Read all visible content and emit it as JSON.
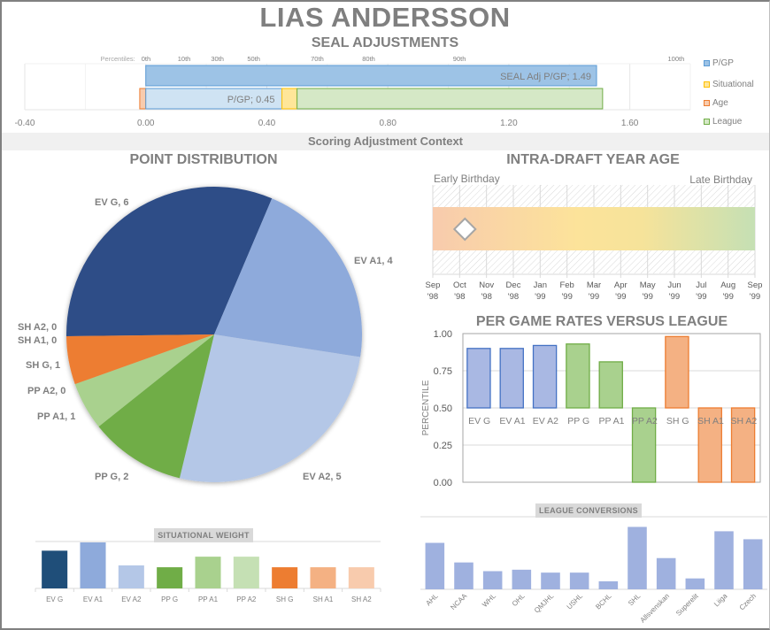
{
  "header": {
    "player_name": "LIAS ANDERSSON",
    "subtitle": "SEAL ADJUSTMENTS"
  },
  "section_band": "Scoring Adjustment Context",
  "colors": {
    "pgp": "#9dc3e6",
    "pgp_border": "#5b9bd5",
    "pgp_light": "#cfe3f3",
    "situational": "#ffe699",
    "situational_border": "#ffc000",
    "age": "#f8cbad",
    "age_border": "#ed7d31",
    "league": "#d5e8c6",
    "league_border": "#70ad47",
    "text": "#7f7f7f"
  },
  "chart_data": [
    {
      "id": "seal_adjustments",
      "type": "bar",
      "orientation": "horizontal-stacked",
      "title": "SEAL ADJUSTMENTS",
      "xlim": [
        -0.4,
        1.8
      ],
      "x_ticks": [
        -0.4,
        0.0,
        0.4,
        0.8,
        1.2,
        1.6
      ],
      "x_tick_labels": [
        "-0.40",
        "0.00",
        "0.40",
        "0.80",
        "1.20",
        "1.60"
      ],
      "percentile_prefix": "Percentiles:",
      "percentiles": [
        {
          "label": "0th",
          "value": 0.0
        },
        {
          "label": "10th",
          "value": 0.12
        },
        {
          "label": "30th",
          "value": 0.23
        },
        {
          "label": "50th",
          "value": 0.35
        },
        {
          "label": "70th",
          "value": 0.56
        },
        {
          "label": "80th",
          "value": 0.73
        },
        {
          "label": "90th",
          "value": 1.03
        },
        {
          "label": "100th",
          "value": 1.74
        }
      ],
      "bars": [
        {
          "name": "SEAL Adj P/GP",
          "segments": [
            {
              "series": "P/GP",
              "start": 0.0,
              "end": 1.49
            }
          ],
          "label": "SEAL Adj P/GP; 1.49"
        },
        {
          "name": "Components",
          "segments": [
            {
              "series": "Age",
              "start": -0.02,
              "end": 0.0
            },
            {
              "series": "P/GP",
              "start": 0.0,
              "end": 0.45
            },
            {
              "series": "Situational",
              "start": 0.45,
              "end": 0.5
            },
            {
              "series": "League",
              "start": 0.5,
              "end": 1.51
            }
          ],
          "label": "P/GP; 0.45"
        }
      ],
      "legend": [
        "P/GP",
        "Situational",
        "Age",
        "League"
      ],
      "legend_position": "right"
    },
    {
      "id": "point_distribution",
      "type": "pie",
      "title": "POINT DISTRIBUTION",
      "slices": [
        {
          "label": "EV G",
          "value": 6,
          "color": "#2e4d87"
        },
        {
          "label": "EV A1",
          "value": 4,
          "color": "#8eaadb"
        },
        {
          "label": "EV A2",
          "value": 5,
          "color": "#b4c7e7"
        },
        {
          "label": "PP G",
          "value": 2,
          "color": "#70ad47"
        },
        {
          "label": "PP A1",
          "value": 1,
          "color": "#a9d18e"
        },
        {
          "label": "PP A2",
          "value": 0,
          "color": "#c5e0b4"
        },
        {
          "label": "SH G",
          "value": 1,
          "color": "#ed7d31"
        },
        {
          "label": "SH A1",
          "value": 0,
          "color": "#f4b183"
        },
        {
          "label": "SH A2",
          "value": 0,
          "color": "#f8cbad"
        }
      ],
      "data_labels": [
        "EV G, 6",
        "EV A1, 4",
        "EV A2, 5",
        "PP G, 2",
        "PP A1, 1",
        "PP A2, 0",
        "SH G, 1",
        "SH A1, 0",
        "SH A2, 0"
      ]
    },
    {
      "id": "intra_draft_year_age",
      "type": "scatter",
      "title": "INTRA-DRAFT YEAR AGE",
      "left_label": "Early Birthday",
      "right_label": "Late Birthday",
      "x_tick_labels": [
        [
          "Sep",
          "'98"
        ],
        [
          "Oct",
          "'98"
        ],
        [
          "Nov",
          "'98"
        ],
        [
          "Dec",
          "'98"
        ],
        [
          "Jan",
          "'99"
        ],
        [
          "Feb",
          "'99"
        ],
        [
          "Mar",
          "'99"
        ],
        [
          "Apr",
          "'99"
        ],
        [
          "May",
          "'99"
        ],
        [
          "Jun",
          "'99"
        ],
        [
          "Jul",
          "'99"
        ],
        [
          "Aug",
          "'99"
        ],
        [
          "Sep",
          "'99"
        ]
      ],
      "marker_month_index": 0.9
    },
    {
      "id": "per_game_rates",
      "type": "bar",
      "title": "PER GAME RATES VERSUS  LEAGUE",
      "ylabel": "PERCENTILE",
      "ylim": [
        0,
        1
      ],
      "baseline": 0.5,
      "y_ticks": [
        "0.00",
        "0.25",
        "0.50",
        "0.75",
        "1.00"
      ],
      "categories": [
        "EV G",
        "EV A1",
        "EV A2",
        "PP G",
        "PP A1",
        "PP A2",
        "SH G",
        "SH A1",
        "SH A2"
      ],
      "values": [
        0.9,
        0.9,
        0.92,
        0.93,
        0.81,
        0.0,
        0.98,
        0.0,
        0.0
      ],
      "bar_colors": [
        "#a9b8e3",
        "#a9b8e3",
        "#a9b8e3",
        "#a9d18e",
        "#a9d18e",
        "#a9d18e",
        "#f4b183",
        "#f4b183",
        "#f4b183"
      ],
      "border_colors": [
        "#4472c4",
        "#4472c4",
        "#4472c4",
        "#70ad47",
        "#70ad47",
        "#70ad47",
        "#ed7d31",
        "#ed7d31",
        "#ed7d31"
      ]
    },
    {
      "id": "situational_weight",
      "type": "bar",
      "title": "SITUATIONAL  WEIGHT",
      "categories": [
        "EV G",
        "EV A1",
        "EV A2",
        "PP G",
        "PP A1",
        "PP A2",
        "SH G",
        "SH A1",
        "SH A2"
      ],
      "values": [
        0.82,
        1.0,
        0.5,
        0.46,
        0.69,
        0.69,
        0.46,
        0.46,
        0.46
      ],
      "bar_colors": [
        "#1f4e79",
        "#8eaadb",
        "#b4c7e7",
        "#70ad47",
        "#a9d18e",
        "#c5e0b4",
        "#ed7d31",
        "#f4b183",
        "#f8cbad"
      ]
    },
    {
      "id": "league_conversions",
      "type": "bar",
      "title": "LEAGUE CONVERSIONS",
      "categories": [
        "AHL",
        "NCAA",
        "WHL",
        "OHL",
        "QMJHL",
        "USHL",
        "BCHL",
        "SHL",
        "Allsvenskan",
        "Superelit",
        "Liiga",
        "Czech"
      ],
      "values": [
        0.64,
        0.37,
        0.25,
        0.27,
        0.23,
        0.23,
        0.11,
        0.86,
        0.43,
        0.15,
        0.8,
        0.69
      ],
      "bar_color": "#9fb1df"
    }
  ]
}
